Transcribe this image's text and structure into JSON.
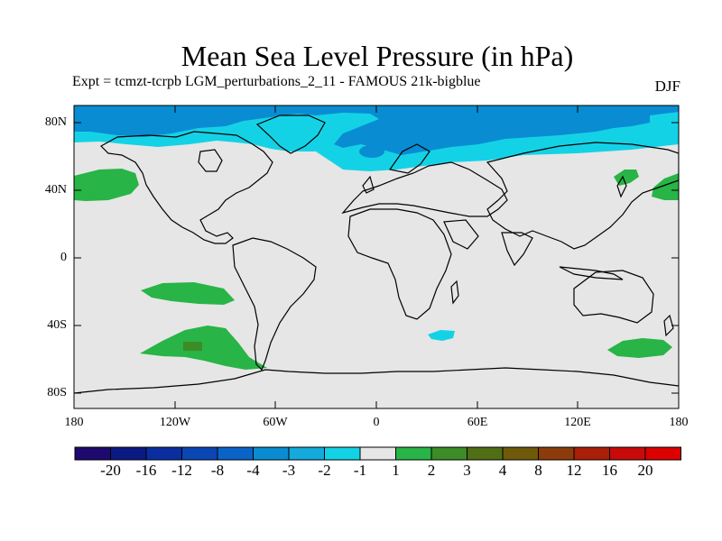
{
  "title": "Mean Sea Level Pressure (in hPa)",
  "subtitle": "Expt = tcmzt-tcrpb   LGM_perturbations_2_11 - FAMOUS 21k-bigblue",
  "season": "DJF",
  "lat_labels": [
    "80N",
    "40N",
    "0",
    "40S",
    "80S"
  ],
  "lon_labels": [
    "180",
    "120W",
    "60W",
    "0",
    "60E",
    "120E",
    "180"
  ],
  "colorbar": {
    "labels": [
      "-20",
      "-16",
      "-12",
      "-8",
      "-4",
      "-3",
      "-2",
      "-1",
      "1",
      "2",
      "3",
      "4",
      "8",
      "12",
      "16",
      "20"
    ],
    "colors": [
      "#1e0a6e",
      "#0a1a82",
      "#0a2ea0",
      "#0a46b4",
      "#0a64c8",
      "#0a8cd2",
      "#14aadc",
      "#14d2e6",
      "#e6e6e6",
      "#28b446",
      "#3c8c28",
      "#506e14",
      "#6e5a0a",
      "#8c3c0a",
      "#aa1e0a",
      "#c80a0a",
      "#dc0000"
    ]
  },
  "map_regions": {
    "background_color": "#e6e6e6",
    "arctic_negative_color": "#14d2e6",
    "arctic_deep_color": "#0a8cd2",
    "positive_color": "#28b446",
    "stronger_positive_color": "#3c8c28"
  }
}
